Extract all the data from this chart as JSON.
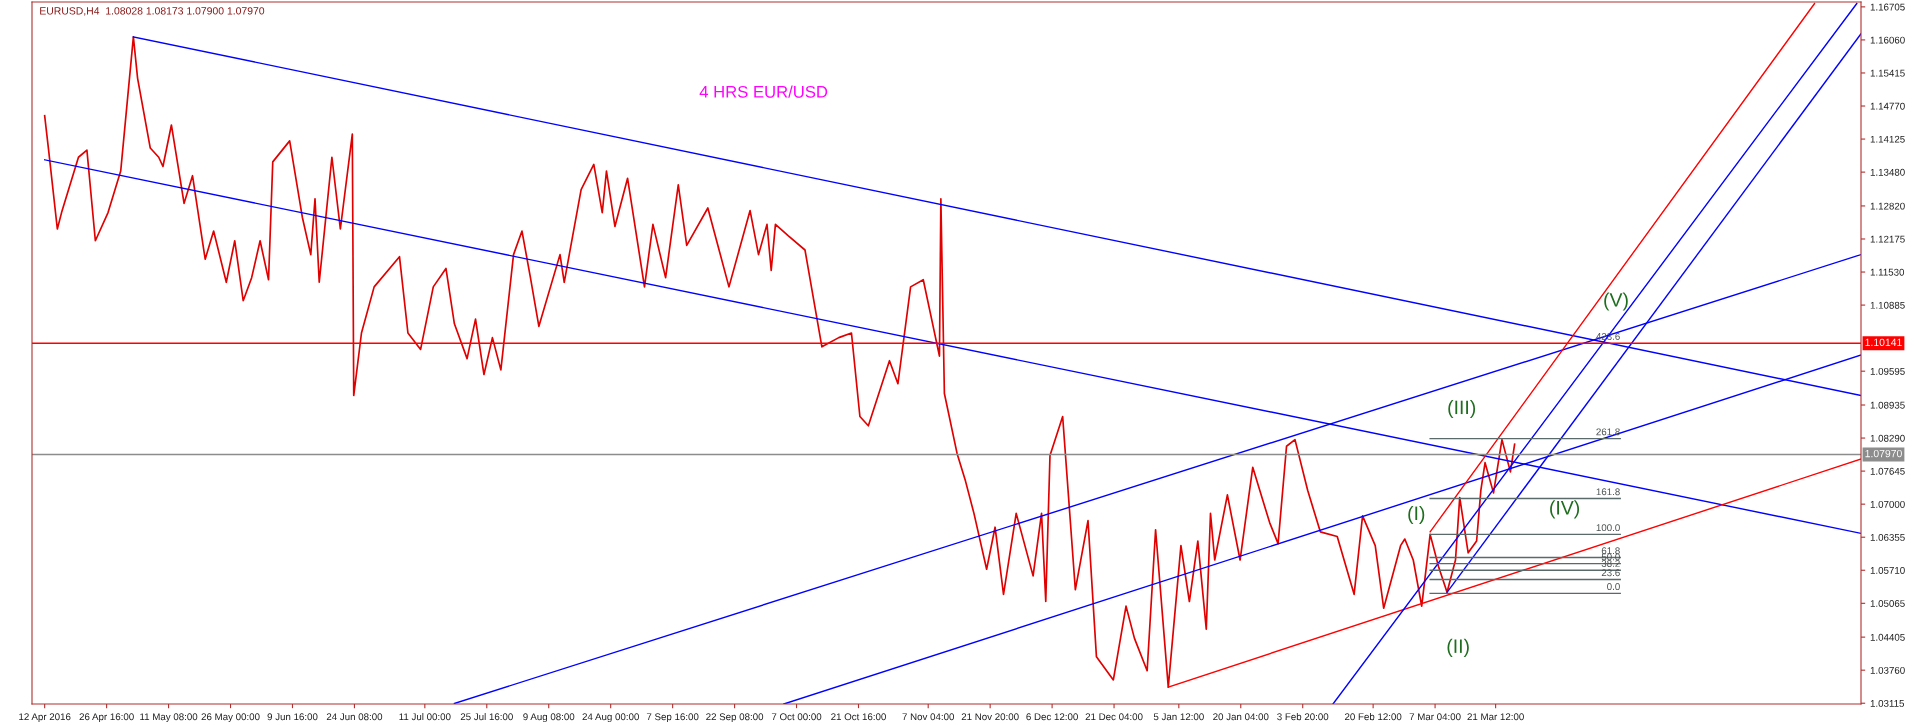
{
  "chart_data": {
    "type": "line",
    "title": "EURUSD,H4  1.08028 1.08173 1.07900 1.07970",
    "subtitle": "4 HRS EUR/USD",
    "xlim": [
      "2016-04-09",
      "2017-06-16"
    ],
    "ylim": [
      1.031,
      1.168
    ],
    "xticks": [
      {
        "value": "2016-04-12T00:00",
        "label": "12 Apr 2016"
      },
      {
        "value": "2016-04-26T16:00",
        "label": "26 Apr 16:00"
      },
      {
        "value": "2016-05-11T08:00",
        "label": "11 May 08:00"
      },
      {
        "value": "2016-05-26T00:00",
        "label": "26 May 00:00"
      },
      {
        "value": "2016-06-09T16:00",
        "label": "9 Jun 16:00"
      },
      {
        "value": "2016-06-24T08:00",
        "label": "24 Jun 08:00"
      },
      {
        "value": "2016-07-11T00:00",
        "label": "11 Jul 00:00"
      },
      {
        "value": "2016-07-25T16:00",
        "label": "25 Jul 16:00"
      },
      {
        "value": "2016-08-09T08:00",
        "label": "9 Aug 08:00"
      },
      {
        "value": "2016-08-24T00:00",
        "label": "24 Aug 00:00"
      },
      {
        "value": "2016-09-07T16:00",
        "label": "7 Sep 16:00"
      },
      {
        "value": "2016-09-22T08:00",
        "label": "22 Sep 08:00"
      },
      {
        "value": "2016-10-07T00:00",
        "label": "7 Oct 00:00"
      },
      {
        "value": "2016-10-21T16:00",
        "label": "21 Oct 16:00"
      },
      {
        "value": "2016-11-07T04:00",
        "label": "7 Nov 04:00"
      },
      {
        "value": "2016-11-21T20:00",
        "label": "21 Nov 20:00"
      },
      {
        "value": "2016-12-06T12:00",
        "label": "6 Dec 12:00"
      },
      {
        "value": "2016-12-21T04:00",
        "label": "21 Dec 04:00"
      },
      {
        "value": "2017-01-05T12:00",
        "label": "5 Jan 12:00"
      },
      {
        "value": "2017-01-20T04:00",
        "label": "20 Jan 04:00"
      },
      {
        "value": "2017-02-03T20:00",
        "label": "3 Feb 20:00"
      },
      {
        "value": "2017-02-20T12:00",
        "label": "20 Feb 12:00"
      },
      {
        "value": "2017-03-07T04:00",
        "label": "7 Mar 04:00"
      },
      {
        "value": "2017-03-21T12:00",
        "label": "21 Mar 12:00"
      }
    ],
    "yticks": [
      {
        "value": 1.03115,
        "label": "1.03115"
      },
      {
        "value": 1.0376,
        "label": "1.03760"
      },
      {
        "value": 1.04405,
        "label": "1.04405"
      },
      {
        "value": 1.05065,
        "label": "1.05065"
      },
      {
        "value": 1.0571,
        "label": "1.05710"
      },
      {
        "value": 1.06355,
        "label": "1.06355"
      },
      {
        "value": 1.07,
        "label": "1.07000"
      },
      {
        "value": 1.07645,
        "label": "1.07645"
      },
      {
        "value": 1.0829,
        "label": "1.08290"
      },
      {
        "value": 1.08935,
        "label": "1.08935"
      },
      {
        "value": 1.09595,
        "label": "1.09595"
      },
      {
        "value": 1.10885,
        "label": "1.10885"
      },
      {
        "value": 1.1153,
        "label": "1.11530"
      },
      {
        "value": 1.12175,
        "label": "1.12175"
      },
      {
        "value": 1.1282,
        "label": "1.12820"
      },
      {
        "value": 1.1348,
        "label": "1.13480"
      },
      {
        "value": 1.14125,
        "label": "1.14125"
      },
      {
        "value": 1.1477,
        "label": "1.14770"
      },
      {
        "value": 1.15415,
        "label": "1.15415"
      },
      {
        "value": 1.1606,
        "label": "1.16060"
      },
      {
        "value": 1.16705,
        "label": "1.16705"
      }
    ],
    "grid": false,
    "ref_lines": [
      {
        "axis": "y",
        "value": 1.10141,
        "label": "1.10141",
        "color": "#ff0000"
      },
      {
        "axis": "y",
        "value": 1.0797,
        "label": "1.07970",
        "color": "#8c8c8c"
      }
    ],
    "series": [
      {
        "color": "#e00000",
        "x": [
          "2016-04-12",
          "2016-04-13",
          "2016-04-15",
          "2016-04-16",
          "2016-04-20",
          "2016-04-22",
          "2016-04-24",
          "2016-04-27",
          "2016-04-30",
          "2016-05-03",
          "2016-05-04",
          "2016-05-07",
          "2016-05-09",
          "2016-05-10",
          "2016-05-12",
          "2016-05-15",
          "2016-05-17",
          "2016-05-20",
          "2016-05-22",
          "2016-05-25",
          "2016-05-27",
          "2016-05-29",
          "2016-05-31",
          "2016-06-02",
          "2016-06-04",
          "2016-06-05",
          "2016-06-09",
          "2016-06-12",
          "2016-06-14",
          "2016-06-15",
          "2016-06-16",
          "2016-06-19",
          "2016-06-21",
          "2016-06-23T20:00",
          "2016-06-24T04:00",
          "2016-06-26",
          "2016-06-29",
          "2016-07-05",
          "2016-07-07",
          "2016-07-10",
          "2016-07-13",
          "2016-07-16",
          "2016-07-18",
          "2016-07-21",
          "2016-07-23",
          "2016-07-25",
          "2016-07-27",
          "2016-07-29",
          "2016-08-01",
          "2016-08-03",
          "2016-08-05",
          "2016-08-07",
          "2016-08-12",
          "2016-08-13",
          "2016-08-17",
          "2016-08-20",
          "2016-08-22",
          "2016-08-23",
          "2016-08-25",
          "2016-08-28",
          "2016-09-01",
          "2016-09-03",
          "2016-09-06",
          "2016-09-09",
          "2016-09-11",
          "2016-09-16",
          "2016-09-21",
          "2016-09-26",
          "2016-09-28",
          "2016-09-30",
          "2016-10-01",
          "2016-10-02",
          "2016-10-05",
          "2016-10-09",
          "2016-10-13",
          "2016-10-17",
          "2016-10-20",
          "2016-10-22",
          "2016-10-24",
          "2016-10-29",
          "2016-10-31",
          "2016-11-03",
          "2016-11-06",
          "2016-11-09T20:00",
          "2016-11-10T04:00",
          "2016-11-11",
          "2016-11-14",
          "2016-11-16",
          "2016-11-18",
          "2016-11-21",
          "2016-11-23",
          "2016-11-25",
          "2016-11-28",
          "2016-12-02",
          "2016-12-04",
          "2016-12-05",
          "2016-12-06",
          "2016-12-09",
          "2016-12-12",
          "2016-12-15",
          "2016-12-17",
          "2016-12-21",
          "2016-12-24",
          "2016-12-26",
          "2016-12-29",
          "2016-12-31",
          "2017-01-03",
          "2017-01-06",
          "2017-01-08",
          "2017-01-10",
          "2017-01-12",
          "2017-01-13",
          "2017-01-14",
          "2017-01-17",
          "2017-01-20",
          "2017-01-23",
          "2017-01-27",
          "2017-01-29",
          "2017-01-31",
          "2017-02-02",
          "2017-02-05",
          "2017-02-08",
          "2017-02-12",
          "2017-02-16",
          "2017-02-18",
          "2017-02-21",
          "2017-02-23",
          "2017-02-27",
          "2017-02-28",
          "2017-03-02",
          "2017-03-04",
          "2017-03-06",
          "2017-03-08",
          "2017-03-10",
          "2017-03-12",
          "2017-03-13",
          "2017-03-15",
          "2017-03-17",
          "2017-03-18",
          "2017-03-19",
          "2017-03-21",
          "2017-03-23",
          "2017-03-25",
          "2017-03-26"
        ],
        "values": [
          1.1458,
          1.1386,
          1.1237,
          1.1269,
          1.1377,
          1.1391,
          1.1214,
          1.1269,
          1.135,
          1.1612,
          1.1531,
          1.1395,
          1.1377,
          1.1359,
          1.144,
          1.1287,
          1.1341,
          1.1178,
          1.1233,
          1.1133,
          1.1214,
          1.1097,
          1.1142,
          1.1214,
          1.1138,
          1.1368,
          1.1409,
          1.126,
          1.1187,
          1.1296,
          1.1133,
          1.1377,
          1.1237,
          1.1422,
          1.0912,
          1.1034,
          1.1124,
          1.1183,
          1.1034,
          1.1002,
          1.1124,
          1.116,
          1.1052,
          1.0984,
          1.1061,
          1.0953,
          1.1025,
          1.0962,
          1.1187,
          1.1233,
          1.1142,
          1.1047,
          1.1187,
          1.1133,
          1.1314,
          1.1363,
          1.1269,
          1.135,
          1.1242,
          1.1336,
          1.1124,
          1.1246,
          1.1142,
          1.1323,
          1.1205,
          1.1278,
          1.1124,
          1.1273,
          1.1187,
          1.1246,
          1.1156,
          1.1246,
          1.1224,
          1.1196,
          1.1007,
          1.1025,
          1.1034,
          1.0871,
          1.0853,
          1.098,
          1.0935,
          1.1124,
          1.1138,
          1.0989,
          1.1296,
          1.0916,
          1.0799,
          1.0745,
          1.0682,
          1.0573,
          1.0655,
          1.0524,
          1.0682,
          1.056,
          1.0682,
          1.051,
          1.0795,
          1.0871,
          1.0533,
          1.0668,
          1.0402,
          1.0357,
          1.0501,
          1.0438,
          1.0375,
          1.065,
          1.0343,
          1.0619,
          1.051,
          1.0628,
          1.0456,
          1.0682,
          1.0591,
          1.0718,
          1.0591,
          1.0772,
          1.0664,
          1.0623,
          1.0813,
          1.0826,
          1.0727,
          1.0646,
          1.0637,
          1.0524,
          1.0677,
          1.0619,
          1.0497,
          1.0619,
          1.0632,
          1.0591,
          1.0501,
          1.0641,
          1.0578,
          1.0528,
          1.0591,
          1.0713,
          1.0605,
          1.0628,
          1.0727,
          1.0781,
          1.0722,
          1.0826,
          1.0763,
          1.0817
        ]
      },
      {
        "color": "#0000ff",
        "x": [
          "2016-05-03",
          "2017-06-16"
        ],
        "values": [
          1.1612,
          1.0912
        ]
      },
      {
        "color": "#0000ff",
        "x": [
          "2016-04-12",
          "2017-06-16"
        ],
        "values": [
          1.1372,
          1.0643
        ]
      },
      {
        "color": "#0000ff",
        "x": [
          "2016-07-18",
          "2017-06-16"
        ],
        "values": [
          1.0311,
          1.1187
        ]
      },
      {
        "color": "#0000ff",
        "x": [
          "2016-10-04",
          "2017-06-16"
        ],
        "values": [
          1.031,
          1.0991
        ]
      },
      {
        "color": "#ff0000",
        "x": [
          "2017-01-03",
          "2017-06-16"
        ],
        "values": [
          1.0343,
          1.0788
        ]
      },
      {
        "color": "#ff0000",
        "x": [
          "2017-03-06",
          "2017-06-05"
        ],
        "values": [
          1.0646,
          1.1677
        ]
      },
      {
        "color": "#0000ff",
        "x": [
          "2017-02-11",
          "2017-06-15"
        ],
        "values": [
          1.031,
          1.1677
        ]
      },
      {
        "color": "#0000ff",
        "x": [
          "2017-03-10",
          "2017-06-16"
        ],
        "values": [
          1.0528,
          1.1618
        ]
      },
      {
        "color": "#5a6a6a",
        "x": [
          "2017-03-06",
          "2017-04-20"
        ],
        "values": [
          1.0526,
          1.0526
        ]
      },
      {
        "color": "#5a6a6a",
        "x": [
          "2017-03-06",
          "2017-04-20"
        ],
        "values": [
          1.0553,
          1.0553
        ]
      },
      {
        "color": "#5a6a6a",
        "x": [
          "2017-03-06",
          "2017-04-20"
        ],
        "values": [
          1.0571,
          1.0571
        ]
      },
      {
        "color": "#5a6a6a",
        "x": [
          "2017-03-06",
          "2017-04-20"
        ],
        "values": [
          1.0584,
          1.0584
        ]
      },
      {
        "color": "#5a6a6a",
        "x": [
          "2017-03-06",
          "2017-04-20"
        ],
        "values": [
          1.0596,
          1.0596
        ]
      },
      {
        "color": "#5a6a6a",
        "x": [
          "2017-03-06",
          "2017-04-20"
        ],
        "values": [
          1.0641,
          1.0641
        ]
      },
      {
        "color": "#5a6a6a",
        "x": [
          "2017-03-06",
          "2017-04-20"
        ],
        "values": [
          1.0711,
          1.0711
        ]
      },
      {
        "color": "#5a6a6a",
        "x": [
          "2017-03-06",
          "2017-04-20"
        ],
        "values": [
          1.0828,
          1.0828
        ]
      }
    ],
    "annotations": [
      {
        "text": "(I)",
        "x": "2017-03-06",
        "y": 1.0641
      },
      {
        "text": "(II)",
        "x": "2017-03-10",
        "y": 1.0528
      },
      {
        "text": "(III)",
        "x": "2017-03-23",
        "y": 1.0826
      },
      {
        "text": "(IV)",
        "x": "2017-03-25",
        "y": 1.0763
      },
      {
        "text": "(V)",
        "x": "2017-04-19",
        "y": 1.10141
      },
      {
        "text": "0.0",
        "x": "2017-04-20",
        "y": 1.0526
      },
      {
        "text": "23.6",
        "x": "2017-04-20",
        "y": 1.0553
      },
      {
        "text": "38.2",
        "x": "2017-04-20",
        "y": 1.0571
      },
      {
        "text": "50.0",
        "x": "2017-04-20",
        "y": 1.0584
      },
      {
        "text": "61.8",
        "x": "2017-04-20",
        "y": 1.0596
      },
      {
        "text": "100.0",
        "x": "2017-04-20",
        "y": 1.0641
      },
      {
        "text": "161.8",
        "x": "2017-04-20",
        "y": 1.0711
      },
      {
        "text": "261.8",
        "x": "2017-04-20",
        "y": 1.0828
      },
      {
        "text": "423.6",
        "x": "2017-04-20",
        "y": 1.10141
      }
    ]
  }
}
